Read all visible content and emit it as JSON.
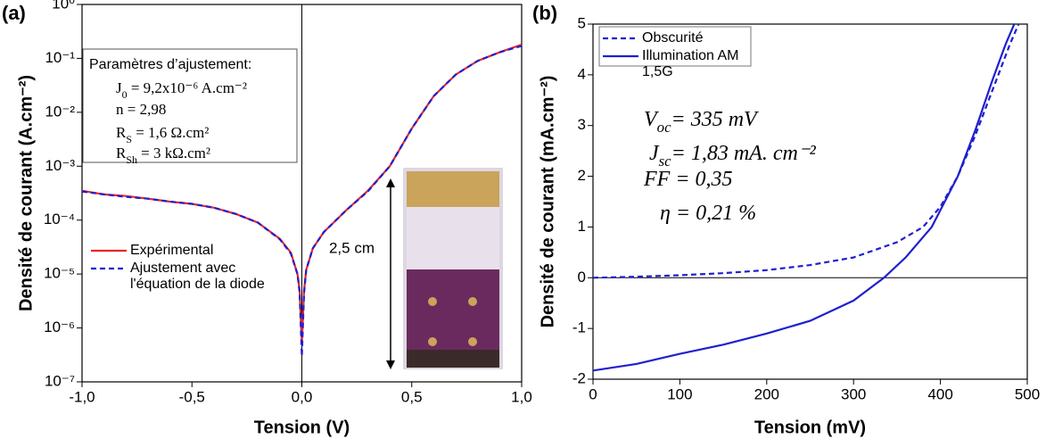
{
  "chart_data": [
    {
      "type": "line",
      "panel_label": "(a)",
      "yscale": "log",
      "x_label": "Tension (V)",
      "y_label": "Densité de courant (A.cm⁻²)",
      "xlim": [
        -1,
        1
      ],
      "xticks": [
        {
          "value": -1,
          "label": "-1,0"
        },
        {
          "value": -0.5,
          "label": "-0,5"
        },
        {
          "value": 0,
          "label": "0,0"
        },
        {
          "value": 0.5,
          "label": "0,5"
        },
        {
          "value": 1,
          "label": "1,0"
        }
      ],
      "ylim": [
        1e-07,
        1
      ],
      "yticks": [
        {
          "value": 1e-07,
          "label": "10⁻⁷"
        },
        {
          "value": 1e-06,
          "label": "10⁻⁶"
        },
        {
          "value": 1e-05,
          "label": "10⁻⁵"
        },
        {
          "value": 0.0001,
          "label": "10⁻⁴"
        },
        {
          "value": 0.001,
          "label": "10⁻³"
        },
        {
          "value": 0.01,
          "label": "10⁻²"
        },
        {
          "value": 0.1,
          "label": "10⁻¹"
        },
        {
          "value": 1,
          "label": "10⁰"
        }
      ],
      "legend": "lower left",
      "x": [
        -1,
        -0.9,
        -0.8,
        -0.7,
        -0.6,
        -0.5,
        -0.4,
        -0.3,
        -0.2,
        -0.1,
        -0.05,
        -0.02,
        -0.01,
        0,
        0.01,
        0.02,
        0.05,
        0.1,
        0.2,
        0.3,
        0.4,
        0.5,
        0.6,
        0.7,
        0.8,
        0.9,
        1
      ],
      "series": [
        {
          "name": "Expérimental",
          "color": "#e8262a",
          "dash": false,
          "values": [
            0.00035,
            0.0003,
            0.00028,
            0.00025,
            0.00022,
            0.0002,
            0.00017,
            0.00013,
            9e-05,
            4.5e-05,
            2.5e-05,
            1e-05,
            5e-06,
            5e-07,
            5e-06,
            1.2e-05,
            3e-05,
            6e-05,
            0.00015,
            0.00035,
            0.001,
            0.005,
            0.02,
            0.05,
            0.09,
            0.13,
            0.18
          ]
        },
        {
          "name": "Ajustement avec l'équation de la diode",
          "color": "#1f1fd0",
          "dash": true,
          "values": [
            0.00034,
            0.0003,
            0.00027,
            0.00025,
            0.00022,
            0.0002,
            0.00017,
            0.00013,
            9e-05,
            4.4e-05,
            2.4e-05,
            1e-05,
            4.5e-06,
            3e-07,
            4.5e-06,
            1.2e-05,
            3e-05,
            6e-05,
            0.00015,
            0.00034,
            0.001,
            0.005,
            0.02,
            0.05,
            0.09,
            0.13,
            0.17
          ]
        }
      ],
      "annotations": [
        {
          "main": "Paramètres d’ajustement:"
        },
        {
          "main": "J",
          "sub": "0",
          "rest": " = 9,2x10⁻⁶ A.cm⁻²"
        },
        {
          "main": "n = 2,98"
        },
        {
          "main": "R",
          "sub": "S",
          "rest": " = 1,6 Ω.cm²"
        },
        {
          "main": "R",
          "sub": "Sh",
          "rest": " = 3 kΩ.cm²"
        }
      ],
      "inset_label": "2,5 cm"
    },
    {
      "type": "line",
      "panel_label": "(b)",
      "yscale": "linear",
      "x_label": "Tension (mV)",
      "y_label": "Densité de courant (mA.cm⁻²)",
      "xlim": [
        0,
        500
      ],
      "xticks": [
        0,
        100,
        200,
        300,
        400,
        500
      ],
      "ylim": [
        -2,
        5
      ],
      "yticks": [
        -2,
        -1,
        0,
        1,
        2,
        3,
        4,
        5
      ],
      "legend": "upper left",
      "series": [
        {
          "name": "Obscurité",
          "color": "#1f1fd0",
          "dash": true,
          "x": [
            0,
            50,
            100,
            150,
            200,
            250,
            300,
            350,
            380,
            400,
            420,
            440,
            460,
            480,
            490
          ],
          "values": [
            0,
            0.02,
            0.05,
            0.09,
            0.15,
            0.25,
            0.4,
            0.7,
            1.0,
            1.4,
            2.0,
            2.8,
            3.7,
            4.6,
            5.0
          ]
        },
        {
          "name": "Illumination AM 1,5G",
          "color": "#1f1fd0",
          "dash": false,
          "x": [
            0,
            50,
            100,
            150,
            200,
            250,
            300,
            335,
            360,
            390,
            420,
            440,
            460,
            475,
            485
          ],
          "values": [
            -1.83,
            -1.7,
            -1.5,
            -1.32,
            -1.1,
            -0.85,
            -0.45,
            0,
            0.4,
            1.0,
            2.0,
            2.9,
            3.9,
            4.6,
            5.0
          ]
        }
      ],
      "annotations": [
        {
          "main": "V",
          "sub": "oc",
          "rest": "= 335 mV"
        },
        {
          "main": "J",
          "sub": "sc",
          "rest": "= 1,83 mA. cm⁻²"
        },
        {
          "main": "FF = 0,35"
        },
        {
          "main": "η = 0,21 %"
        }
      ]
    }
  ]
}
